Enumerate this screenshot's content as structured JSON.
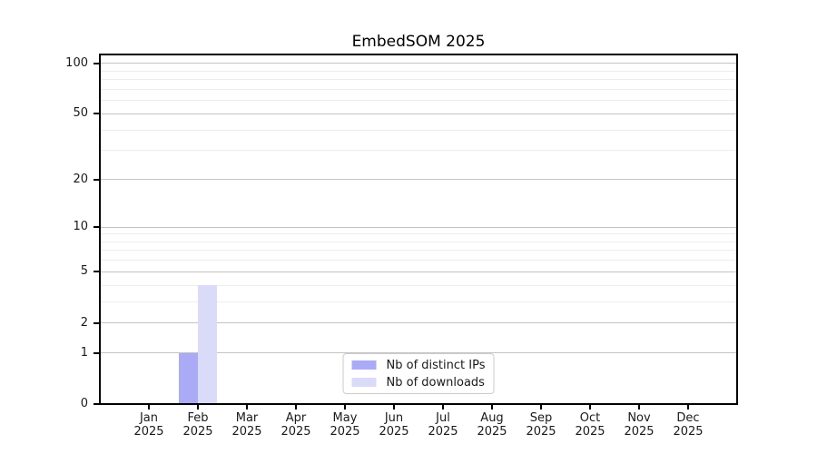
{
  "chart_data": {
    "type": "bar",
    "title": "EmbedSOM 2025",
    "categories": [
      "Jan",
      "Feb",
      "Mar",
      "Apr",
      "May",
      "Jun",
      "Jul",
      "Aug",
      "Sep",
      "Oct",
      "Nov",
      "Dec"
    ],
    "category_year": "2025",
    "series": [
      {
        "name": "Nb of distinct IPs",
        "color": "#aaaaf7",
        "values": [
          0,
          1,
          0,
          0,
          0,
          0,
          0,
          0,
          0,
          0,
          0,
          0
        ]
      },
      {
        "name": "Nb of downloads",
        "color": "#dadaf9",
        "values": [
          0,
          4,
          0,
          0,
          0,
          0,
          0,
          0,
          0,
          0,
          0,
          0
        ]
      }
    ],
    "y_scale": "log10(value+1)",
    "y_ticks": [
      0,
      1,
      2,
      5,
      10,
      20,
      50,
      100
    ],
    "y_minor_gridlines": [
      3,
      4,
      6,
      7,
      8,
      9,
      30,
      40,
      60,
      70,
      80,
      90
    ],
    "ylim": [
      0,
      113
    ],
    "xlabel": "",
    "ylabel": "",
    "grid": true,
    "legend": {
      "entries": [
        "Nb of distinct IPs",
        "Nb of downloads"
      ],
      "position": "lower center"
    },
    "colors": {
      "bar_distinct_ips": "#aaaaf7",
      "bar_downloads": "#dadaf9",
      "major_grid": "#c3c3c3",
      "minor_grid": "#ededed",
      "axis": "#000000",
      "text": "#1a1a1a"
    }
  }
}
